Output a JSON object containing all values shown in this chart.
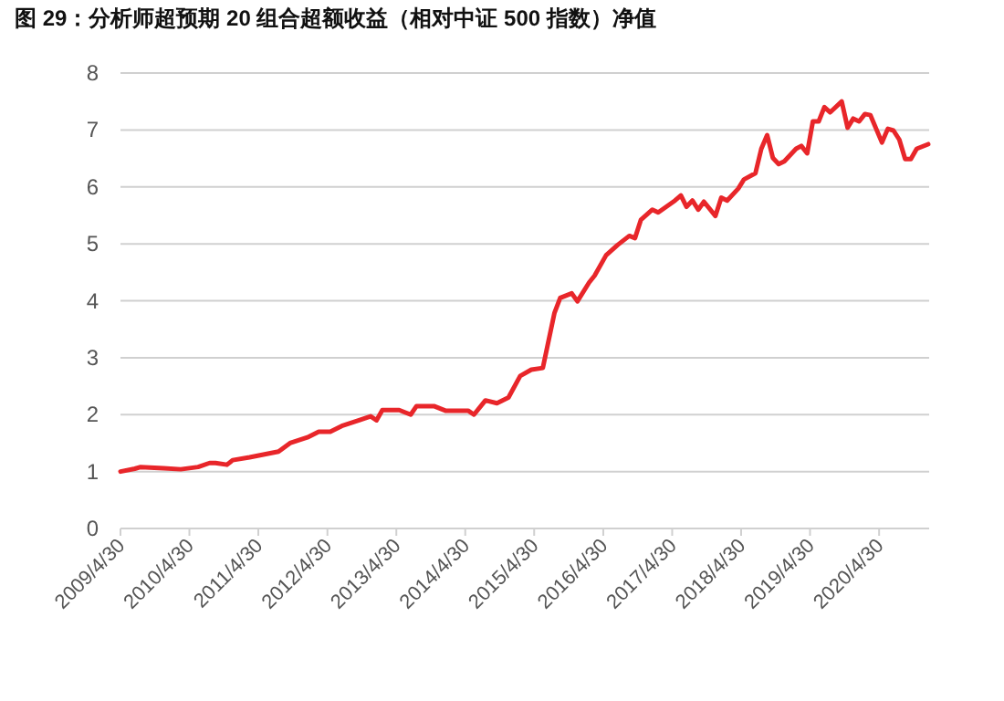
{
  "chart_data": {
    "type": "line",
    "title": "图 29：分析师超预期 20 组合超额收益（相对中证 500 指数）净值",
    "x": [
      "2009-04-30",
      "2009-07",
      "2009-08",
      "2009-12",
      "2010-03",
      "2010-06",
      "2010-08",
      "2010-09",
      "2010-11",
      "2010-12",
      "2011-03",
      "2011-07",
      "2011-08",
      "2011-10",
      "2012-01",
      "2012-03",
      "2012-05",
      "2012-07",
      "2012-10",
      "2012-12",
      "2013-01",
      "2013-02",
      "2013-05",
      "2013-07",
      "2013-08",
      "2013-11",
      "2014-01",
      "2014-05",
      "2014-06",
      "2014-08",
      "2014-10",
      "2014-12",
      "2015-02",
      "2015-04",
      "2015-06",
      "2015-08",
      "2015-09",
      "2015-11",
      "2015-12",
      "2016-02",
      "2016-03",
      "2016-05",
      "2016-07",
      "2016-09",
      "2016-10",
      "2016-11",
      "2017-01",
      "2017-02",
      "2017-05",
      "2017-06",
      "2017-07",
      "2017-08",
      "2017-09",
      "2017-10",
      "2017-12",
      "2018-01",
      "2018-02",
      "2018-04",
      "2018-05",
      "2018-07",
      "2018-08",
      "2018-09",
      "2018-10",
      "2018-11",
      "2018-12",
      "2019-02",
      "2019-03",
      "2019-04",
      "2019-05",
      "2019-06",
      "2019-07",
      "2019-08",
      "2019-10",
      "2019-11",
      "2019-12",
      "2020-01",
      "2020-02",
      "2020-03",
      "2020-05",
      "2020-06",
      "2020-07",
      "2020-08",
      "2020-09",
      "2020-10",
      "2020-11",
      "2021-01"
    ],
    "series": [
      {
        "color": "#e8262a",
        "values": [
          1.0,
          1.05,
          1.08,
          1.06,
          1.04,
          1.08,
          1.15,
          1.15,
          1.12,
          1.2,
          1.25,
          1.33,
          1.35,
          1.5,
          1.6,
          1.7,
          1.7,
          1.8,
          1.9,
          1.97,
          1.9,
          2.08,
          2.08,
          2.0,
          2.15,
          2.15,
          2.07,
          2.07,
          2.0,
          2.25,
          2.2,
          2.3,
          2.68,
          2.79,
          2.82,
          3.78,
          4.05,
          4.13,
          3.99,
          4.32,
          4.44,
          4.8,
          4.98,
          5.14,
          5.1,
          5.42,
          5.6,
          5.55,
          5.76,
          5.85,
          5.65,
          5.76,
          5.6,
          5.74,
          5.49,
          5.81,
          5.76,
          5.97,
          6.13,
          6.24,
          6.67,
          6.91,
          6.51,
          6.4,
          6.45,
          6.67,
          6.72,
          6.59,
          7.15,
          7.15,
          7.4,
          7.31,
          7.5,
          7.04,
          7.2,
          7.15,
          7.28,
          7.26,
          6.78,
          7.02,
          6.99,
          6.83,
          6.49,
          6.49,
          6.67,
          6.75
        ]
      }
    ],
    "xlim": [
      "2009-04-30",
      "2021-01-20"
    ],
    "xticks": [
      {
        "value": "2009-04-30",
        "label": "2009/4/30"
      },
      {
        "value": "2010-04-30",
        "label": "2010/4/30"
      },
      {
        "value": "2011-04-30",
        "label": "2011/4/30"
      },
      {
        "value": "2012-04-30",
        "label": "2012/4/30"
      },
      {
        "value": "2013-04-30",
        "label": "2013/4/30"
      },
      {
        "value": "2014-04-30",
        "label": "2014/4/30"
      },
      {
        "value": "2015-04-30",
        "label": "2015/4/30"
      },
      {
        "value": "2016-04-30",
        "label": "2016/4/30"
      },
      {
        "value": "2017-04-30",
        "label": "2017/4/30"
      },
      {
        "value": "2018-04-30",
        "label": "2018/4/30"
      },
      {
        "value": "2019-04-30",
        "label": "2019/4/30"
      },
      {
        "value": "2020-04-30",
        "label": "2020/4/30"
      }
    ],
    "ylim": [
      0,
      8
    ],
    "yticks": [
      0,
      1,
      2,
      3,
      4,
      5,
      6,
      7,
      8
    ],
    "grid": "y",
    "marker": "none",
    "line_style": "solid"
  }
}
